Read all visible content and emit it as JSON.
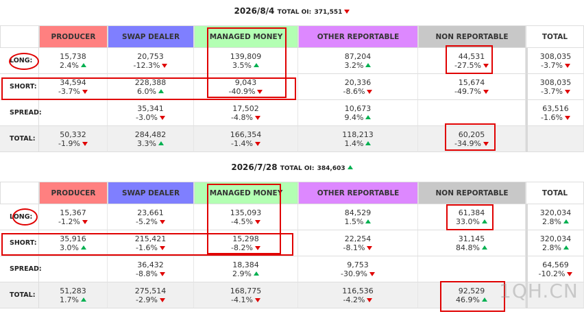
{
  "sections": [
    {
      "title": "2026/8/4",
      "oi_label": "TOTAL OI:",
      "oi_value": "371,551",
      "oi_dir": "down",
      "headers": [
        "PRODUCER",
        "SWAP DEALER",
        "MANAGED MONEY",
        "OTHER REPORTABLE",
        "NON REPORTABLE",
        "TOTAL"
      ],
      "rows": [
        {
          "label": "LONG:",
          "cells": [
            {
              "value": "15,738",
              "change": "2.4%",
              "dir": "up"
            },
            {
              "value": "20,753",
              "change": "-12.3%",
              "dir": "down"
            },
            {
              "value": "139,809",
              "change": "3.5%",
              "dir": "up"
            },
            {
              "value": "87,204",
              "change": "3.2%",
              "dir": "up"
            },
            {
              "value": "44,531",
              "change": "-27.5%",
              "dir": "down"
            },
            {
              "value": "308,035",
              "change": "-3.7%",
              "dir": "down"
            }
          ]
        },
        {
          "label": "SHORT:",
          "cells": [
            {
              "value": "34,594",
              "change": "-3.7%",
              "dir": "down"
            },
            {
              "value": "228,388",
              "change": "6.0%",
              "dir": "up"
            },
            {
              "value": "9,043",
              "change": "-40.9%",
              "dir": "down"
            },
            {
              "value": "20,336",
              "change": "-8.6%",
              "dir": "down"
            },
            {
              "value": "15,674",
              "change": "-49.7%",
              "dir": "down"
            },
            {
              "value": "308,035",
              "change": "-3.7%",
              "dir": "down"
            }
          ]
        },
        {
          "label": "SPREAD:",
          "cells": [
            null,
            {
              "value": "35,341",
              "change": "-3.0%",
              "dir": "down"
            },
            {
              "value": "17,502",
              "change": "-4.8%",
              "dir": "down"
            },
            {
              "value": "10,673",
              "change": "9.4%",
              "dir": "up"
            },
            null,
            {
              "value": "63,516",
              "change": "-1.6%",
              "dir": "down"
            }
          ]
        },
        {
          "label": "TOTAL:",
          "cells": [
            {
              "value": "50,332",
              "change": "-1.9%",
              "dir": "down"
            },
            {
              "value": "284,482",
              "change": "3.3%",
              "dir": "up"
            },
            {
              "value": "166,354",
              "change": "-1.4%",
              "dir": "down"
            },
            {
              "value": "118,213",
              "change": "1.4%",
              "dir": "up"
            },
            {
              "value": "60,205",
              "change": "-34.9%",
              "dir": "down"
            },
            null
          ]
        }
      ]
    },
    {
      "title": "2026/7/28",
      "oi_label": "TOTAL OI:",
      "oi_value": "384,603",
      "oi_dir": "up",
      "headers": [
        "PRODUCER",
        "SWAP DEALER",
        "MANAGED MONEY",
        "OTHER REPORTABLE",
        "NON REPORTABLE",
        "TOTAL"
      ],
      "rows": [
        {
          "label": "LONG:",
          "cells": [
            {
              "value": "15,367",
              "change": "-1.2%",
              "dir": "down"
            },
            {
              "value": "23,661",
              "change": "-5.2%",
              "dir": "down"
            },
            {
              "value": "135,093",
              "change": "-4.5%",
              "dir": "down"
            },
            {
              "value": "84,529",
              "change": "1.5%",
              "dir": "up"
            },
            {
              "value": "61,384",
              "change": "33.0%",
              "dir": "up"
            },
            {
              "value": "320,034",
              "change": "2.8%",
              "dir": "up"
            }
          ]
        },
        {
          "label": "SHORT:",
          "cells": [
            {
              "value": "35,916",
              "change": "3.0%",
              "dir": "up"
            },
            {
              "value": "215,421",
              "change": "-1.6%",
              "dir": "down"
            },
            {
              "value": "15,298",
              "change": "-8.2%",
              "dir": "down"
            },
            {
              "value": "22,254",
              "change": "-8.1%",
              "dir": "down"
            },
            {
              "value": "31,145",
              "change": "84.8%",
              "dir": "up"
            },
            {
              "value": "320,034",
              "change": "2.8%",
              "dir": "up"
            }
          ]
        },
        {
          "label": "SPREAD:",
          "cells": [
            null,
            {
              "value": "36,432",
              "change": "-8.8%",
              "dir": "down"
            },
            {
              "value": "18,384",
              "change": "2.9%",
              "dir": "up"
            },
            {
              "value": "9,753",
              "change": "-30.9%",
              "dir": "down"
            },
            null,
            {
              "value": "64,569",
              "change": "-10.2%",
              "dir": "down"
            }
          ]
        },
        {
          "label": "TOTAL:",
          "cells": [
            {
              "value": "51,283",
              "change": "1.7%",
              "dir": "up"
            },
            {
              "value": "275,514",
              "change": "-2.9%",
              "dir": "down"
            },
            {
              "value": "168,775",
              "change": "-4.1%",
              "dir": "down"
            },
            {
              "value": "116,536",
              "change": "-4.2%",
              "dir": "down"
            },
            {
              "value": "92,529",
              "change": "46.9%",
              "dir": "up"
            },
            null
          ]
        }
      ]
    }
  ],
  "watermark": "1QH.CN"
}
